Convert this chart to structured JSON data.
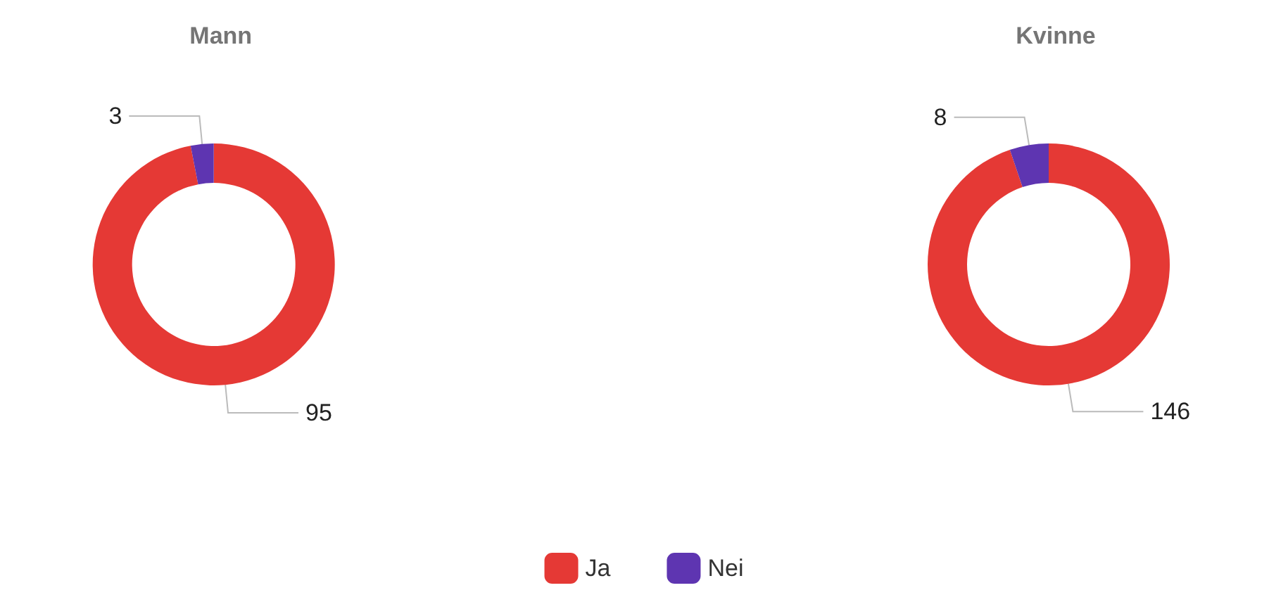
{
  "chart_data": [
    {
      "type": "donut",
      "title": "Mann",
      "categories": [
        "Ja",
        "Nei"
      ],
      "values": [
        95,
        3
      ],
      "colors": [
        "#e53935",
        "#5e35b1"
      ],
      "data_labels": true,
      "legend": "bottom"
    },
    {
      "type": "donut",
      "title": "Kvinne",
      "categories": [
        null,
        null
      ],
      "values": [
        146,
        8
      ],
      "colors": [
        "#e53935",
        "#5e35b1"
      ],
      "data_labels": true
    }
  ]
}
